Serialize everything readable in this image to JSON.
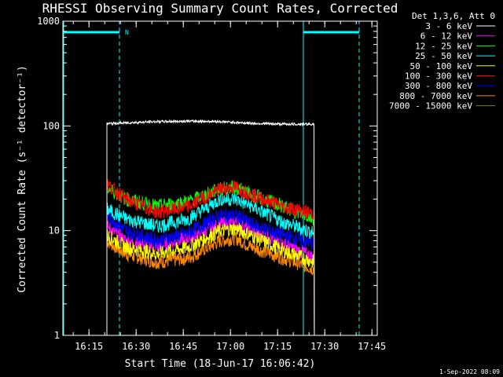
{
  "chart_data": {
    "type": "line",
    "title": "RHESSI Observing Summary Count Rates, Corrected",
    "xlabel": "Start Time (18-Jun-17 16:06:42)",
    "ylabel": "Corrected Count Rate (s⁻¹ detector⁻¹)",
    "yscale": "log",
    "ylim": [
      1,
      1000
    ],
    "xlim_minutes": [
      0,
      100
    ],
    "x_unit": "minutes after 16:06:42",
    "xticks": [
      {
        "label": "16:15",
        "min": 8.3
      },
      {
        "label": "16:30",
        "min": 23.3
      },
      {
        "label": "16:45",
        "min": 38.3
      },
      {
        "label": "17:00",
        "min": 53.3
      },
      {
        "label": "17:15",
        "min": 68.3
      },
      {
        "label": "17:30",
        "min": 83.3
      },
      {
        "label": "17:45",
        "min": 98.3
      }
    ],
    "yticks": [
      {
        "label": "1",
        "v": 1
      },
      {
        "label": "10",
        "v": 10
      },
      {
        "label": "100",
        "v": 100
      },
      {
        "label": "1000",
        "v": 1000
      }
    ],
    "legend_title": "Det 1,3,6, Att 0",
    "series": [
      {
        "name": "3 - 6 keV",
        "color": "#ffffff",
        "points": [
          [
            14,
            105
          ],
          [
            20,
            107
          ],
          [
            30,
            110
          ],
          [
            40,
            111
          ],
          [
            50,
            110
          ],
          [
            60,
            106
          ],
          [
            70,
            104
          ],
          [
            75,
            104
          ],
          [
            80,
            104
          ]
        ]
      },
      {
        "name": "6 - 12 keV",
        "color": "#ff00ff",
        "points": [
          [
            14,
            11
          ],
          [
            20,
            8
          ],
          [
            30,
            7
          ],
          [
            40,
            8.5
          ],
          [
            50,
            11.5
          ],
          [
            55,
            12
          ],
          [
            60,
            10
          ],
          [
            70,
            7.5
          ],
          [
            80,
            5.5
          ]
        ]
      },
      {
        "name": "12 - 25 keV",
        "color": "#00ff00",
        "points": [
          [
            14,
            26
          ],
          [
            20,
            20
          ],
          [
            30,
            17
          ],
          [
            40,
            19
          ],
          [
            50,
            25
          ],
          [
            55,
            26
          ],
          [
            60,
            22
          ],
          [
            70,
            17
          ],
          [
            80,
            13
          ]
        ]
      },
      {
        "name": "25 - 50 keV",
        "color": "#00ffff",
        "points": [
          [
            14,
            16
          ],
          [
            20,
            13
          ],
          [
            30,
            11
          ],
          [
            40,
            13
          ],
          [
            50,
            20
          ],
          [
            55,
            20
          ],
          [
            60,
            17
          ],
          [
            70,
            12
          ],
          [
            80,
            9.5
          ]
        ]
      },
      {
        "name": "50 - 100 keV",
        "color": "#ffff00",
        "points": [
          [
            14,
            9
          ],
          [
            20,
            7
          ],
          [
            30,
            6
          ],
          [
            40,
            7
          ],
          [
            50,
            10
          ],
          [
            55,
            10.5
          ],
          [
            60,
            9
          ],
          [
            70,
            6.5
          ],
          [
            80,
            5
          ]
        ]
      },
      {
        "name": "100 - 300 keV",
        "color": "#ff0000",
        "points": [
          [
            14,
            28
          ],
          [
            20,
            20
          ],
          [
            30,
            15
          ],
          [
            40,
            17
          ],
          [
            50,
            25
          ],
          [
            55,
            26
          ],
          [
            60,
            22
          ],
          [
            70,
            17
          ],
          [
            80,
            14.5
          ]
        ]
      },
      {
        "name": "300 - 800 keV",
        "color": "#0000ff",
        "points": [
          [
            14,
            14
          ],
          [
            20,
            10
          ],
          [
            30,
            8
          ],
          [
            40,
            9.5
          ],
          [
            50,
            14
          ],
          [
            55,
            14
          ],
          [
            60,
            11.5
          ],
          [
            70,
            9
          ],
          [
            80,
            7.5
          ]
        ]
      },
      {
        "name": "800 - 7000 keV",
        "color": "#ff8800",
        "points": [
          [
            14,
            8
          ],
          [
            20,
            6
          ],
          [
            30,
            5
          ],
          [
            40,
            5.5
          ],
          [
            50,
            8
          ],
          [
            55,
            8.5
          ],
          [
            60,
            7
          ],
          [
            70,
            5.5
          ],
          [
            80,
            4.3
          ]
        ]
      },
      {
        "name": "7000 - 15000 keV",
        "color": "#808000",
        "points": []
      }
    ]
  },
  "legend": {
    "title": "Det 1,3,6, Att 0"
  },
  "annotation": {
    "n_marker": "N"
  },
  "footer": {
    "date": "1-Sep-2022 08:09"
  }
}
